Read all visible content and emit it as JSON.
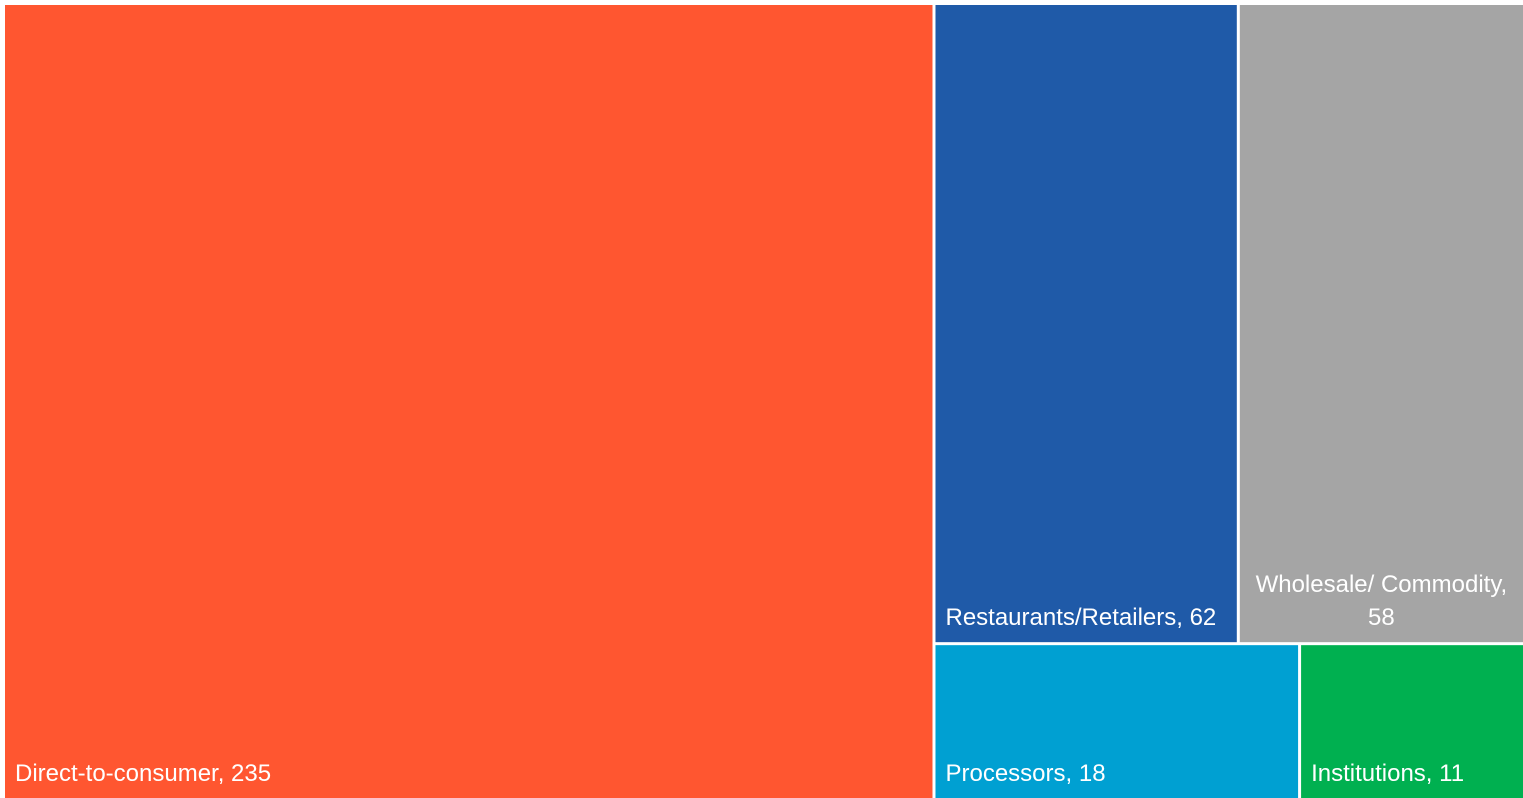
{
  "chart_data": {
    "type": "treemap",
    "values": [
      235,
      62,
      58,
      18,
      11
    ],
    "value_labels": [
      "Direct-to-consumer, 235",
      "Restaurants/Retailers, 62",
      "Wholesale/ Commodity, 58",
      "Processors, 18",
      "Institutions, 11"
    ],
    "colors": [
      "#ff5630",
      "#1f5aa8",
      "#a5a5a5",
      "#00a0d2",
      "#00b050"
    ]
  }
}
